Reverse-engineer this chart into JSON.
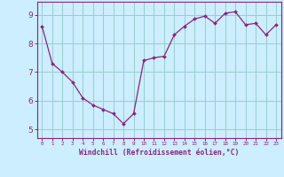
{
  "x": [
    0,
    1,
    2,
    3,
    4,
    5,
    6,
    7,
    8,
    9,
    10,
    11,
    12,
    13,
    14,
    15,
    16,
    17,
    18,
    19,
    20,
    21,
    22,
    23
  ],
  "y": [
    8.6,
    7.3,
    7.0,
    6.65,
    6.1,
    5.85,
    5.7,
    5.55,
    5.2,
    5.55,
    7.4,
    7.5,
    7.55,
    8.3,
    8.6,
    8.85,
    8.95,
    8.7,
    9.05,
    9.1,
    8.65,
    8.7,
    8.3,
    8.65
  ],
  "line_color": "#882288",
  "marker_color": "#882288",
  "bg_color": "#cceeff",
  "grid_color": "#99cccc",
  "axis_color": "#882288",
  "spine_color": "#882288",
  "xlabel": "Windchill (Refroidissement éolien,°C)",
  "yticks": [
    5,
    6,
    7,
    8,
    9
  ],
  "ylim": [
    4.7,
    9.45
  ],
  "xlim": [
    -0.5,
    23.5
  ]
}
